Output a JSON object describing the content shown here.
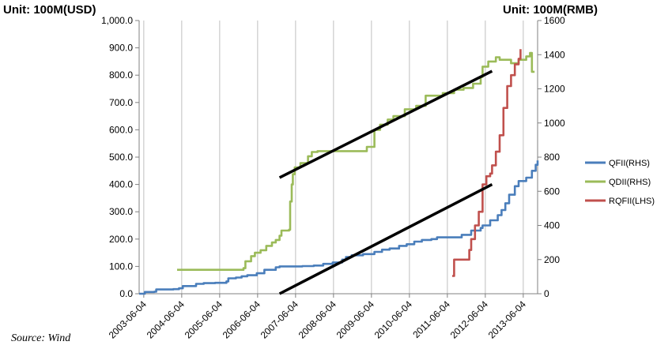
{
  "chart_data": {
    "type": "line",
    "left_unit": "Unit:  100M(USD)",
    "right_unit": "Unit:  100M(RMB)",
    "source": "Source: Wind",
    "x_labels": [
      "2003-06-04",
      "2004-06-04",
      "2005-06-04",
      "2006-06-04",
      "2007-06-04",
      "2008-06-04",
      "2009-06-04",
      "2010-06-04",
      "2011-06-04",
      "2012-06-04",
      "2013-06-04"
    ],
    "x_range": [
      2003.3,
      2013.8
    ],
    "y_left": {
      "ticks": [
        "0.0",
        "100.0",
        "200.0",
        "300.0",
        "400.0",
        "500.0",
        "600.0",
        "700.0",
        "800.0",
        "900.0",
        "1,000.0"
      ],
      "range": [
        0,
        1000
      ]
    },
    "y_right": {
      "ticks": [
        "0",
        "200",
        "400",
        "600",
        "800",
        "1000",
        "1200",
        "1400",
        "1600"
      ],
      "range": [
        0,
        1600
      ]
    },
    "series": [
      {
        "name": "QFII(RHS)",
        "axis": "right",
        "color": "#4A7EBB",
        "points": [
          [
            2003.3,
            0
          ],
          [
            2003.45,
            10
          ],
          [
            2003.7,
            12
          ],
          [
            2003.75,
            25
          ],
          [
            2004.2,
            27
          ],
          [
            2004.35,
            32
          ],
          [
            2004.45,
            45
          ],
          [
            2004.8,
            58
          ],
          [
            2005.0,
            62
          ],
          [
            2005.3,
            64
          ],
          [
            2005.6,
            72
          ],
          [
            2005.65,
            90
          ],
          [
            2005.85,
            95
          ],
          [
            2006.0,
            102
          ],
          [
            2006.15,
            108
          ],
          [
            2006.4,
            120
          ],
          [
            2006.6,
            140
          ],
          [
            2006.9,
            155
          ],
          [
            2007.0,
            160
          ],
          [
            2007.2,
            160
          ],
          [
            2007.6,
            162
          ],
          [
            2007.9,
            165
          ],
          [
            2008.15,
            175
          ],
          [
            2008.4,
            183
          ],
          [
            2008.65,
            200
          ],
          [
            2008.75,
            215
          ],
          [
            2008.9,
            225
          ],
          [
            2009.2,
            232
          ],
          [
            2009.5,
            245
          ],
          [
            2009.7,
            258
          ],
          [
            2009.9,
            265
          ],
          [
            2010.15,
            280
          ],
          [
            2010.35,
            290
          ],
          [
            2010.55,
            305
          ],
          [
            2010.75,
            315
          ],
          [
            2011.0,
            320
          ],
          [
            2011.15,
            330
          ],
          [
            2011.6,
            330
          ],
          [
            2011.8,
            345
          ],
          [
            2012.05,
            370
          ],
          [
            2012.3,
            385
          ],
          [
            2012.35,
            400
          ],
          [
            2012.55,
            430
          ],
          [
            2012.75,
            460
          ],
          [
            2012.85,
            490
          ],
          [
            2012.95,
            530
          ],
          [
            2013.05,
            580
          ],
          [
            2013.2,
            630
          ],
          [
            2013.3,
            660
          ],
          [
            2013.5,
            680
          ],
          [
            2013.65,
            720
          ],
          [
            2013.75,
            755
          ],
          [
            2013.8,
            780
          ]
        ]
      },
      {
        "name": "QDII(RHS)",
        "axis": "right",
        "color": "#9BBB59",
        "points": [
          [
            2004.3,
            140
          ],
          [
            2005.95,
            140
          ],
          [
            2006.05,
            150
          ],
          [
            2006.1,
            190
          ],
          [
            2006.25,
            220
          ],
          [
            2006.35,
            240
          ],
          [
            2006.5,
            255
          ],
          [
            2006.65,
            280
          ],
          [
            2006.8,
            300
          ],
          [
            2006.9,
            315
          ],
          [
            2007.0,
            340
          ],
          [
            2007.05,
            370
          ],
          [
            2007.25,
            375
          ],
          [
            2007.28,
            540
          ],
          [
            2007.32,
            640
          ],
          [
            2007.35,
            700
          ],
          [
            2007.4,
            740
          ],
          [
            2007.55,
            765
          ],
          [
            2007.75,
            805
          ],
          [
            2007.85,
            830
          ],
          [
            2008.0,
            835
          ],
          [
            2008.5,
            835
          ],
          [
            2009.2,
            835
          ],
          [
            2009.3,
            860
          ],
          [
            2009.5,
            960
          ],
          [
            2009.65,
            990
          ],
          [
            2009.85,
            1020
          ],
          [
            2010.0,
            1040
          ],
          [
            2010.3,
            1080
          ],
          [
            2010.6,
            1100
          ],
          [
            2010.8,
            1100
          ],
          [
            2010.85,
            1160
          ],
          [
            2011.3,
            1175
          ],
          [
            2011.6,
            1195
          ],
          [
            2011.85,
            1205
          ],
          [
            2012.1,
            1230
          ],
          [
            2012.3,
            1270
          ],
          [
            2012.35,
            1330
          ],
          [
            2012.5,
            1360
          ],
          [
            2012.7,
            1385
          ],
          [
            2012.8,
            1370
          ],
          [
            2012.95,
            1370
          ],
          [
            2013.1,
            1350
          ],
          [
            2013.3,
            1370
          ],
          [
            2013.5,
            1390
          ],
          [
            2013.6,
            1410
          ],
          [
            2013.65,
            1300
          ],
          [
            2013.72,
            1300
          ]
        ]
      },
      {
        "name": "RQFII(LHS)",
        "axis": "left",
        "color": "#C0504D",
        "points": [
          [
            2011.55,
            65
          ],
          [
            2011.6,
            125
          ],
          [
            2011.85,
            125
          ],
          [
            2012.0,
            160
          ],
          [
            2012.05,
            200
          ],
          [
            2012.15,
            250
          ],
          [
            2012.25,
            300
          ],
          [
            2012.35,
            400
          ],
          [
            2012.45,
            430
          ],
          [
            2012.55,
            440
          ],
          [
            2012.6,
            470
          ],
          [
            2012.7,
            520
          ],
          [
            2012.8,
            580
          ],
          [
            2012.9,
            680
          ],
          [
            2013.0,
            760
          ],
          [
            2013.1,
            800
          ],
          [
            2013.2,
            840
          ],
          [
            2013.3,
            860
          ],
          [
            2013.35,
            895
          ]
        ]
      }
    ],
    "trend_lines": [
      {
        "axis": "left",
        "from": [
          2007.0,
          425
        ],
        "to": [
          2012.6,
          815
        ]
      },
      {
        "axis": "left",
        "from": [
          2007.0,
          0
        ],
        "to": [
          2012.6,
          400
        ]
      }
    ],
    "legend_position": "right"
  }
}
